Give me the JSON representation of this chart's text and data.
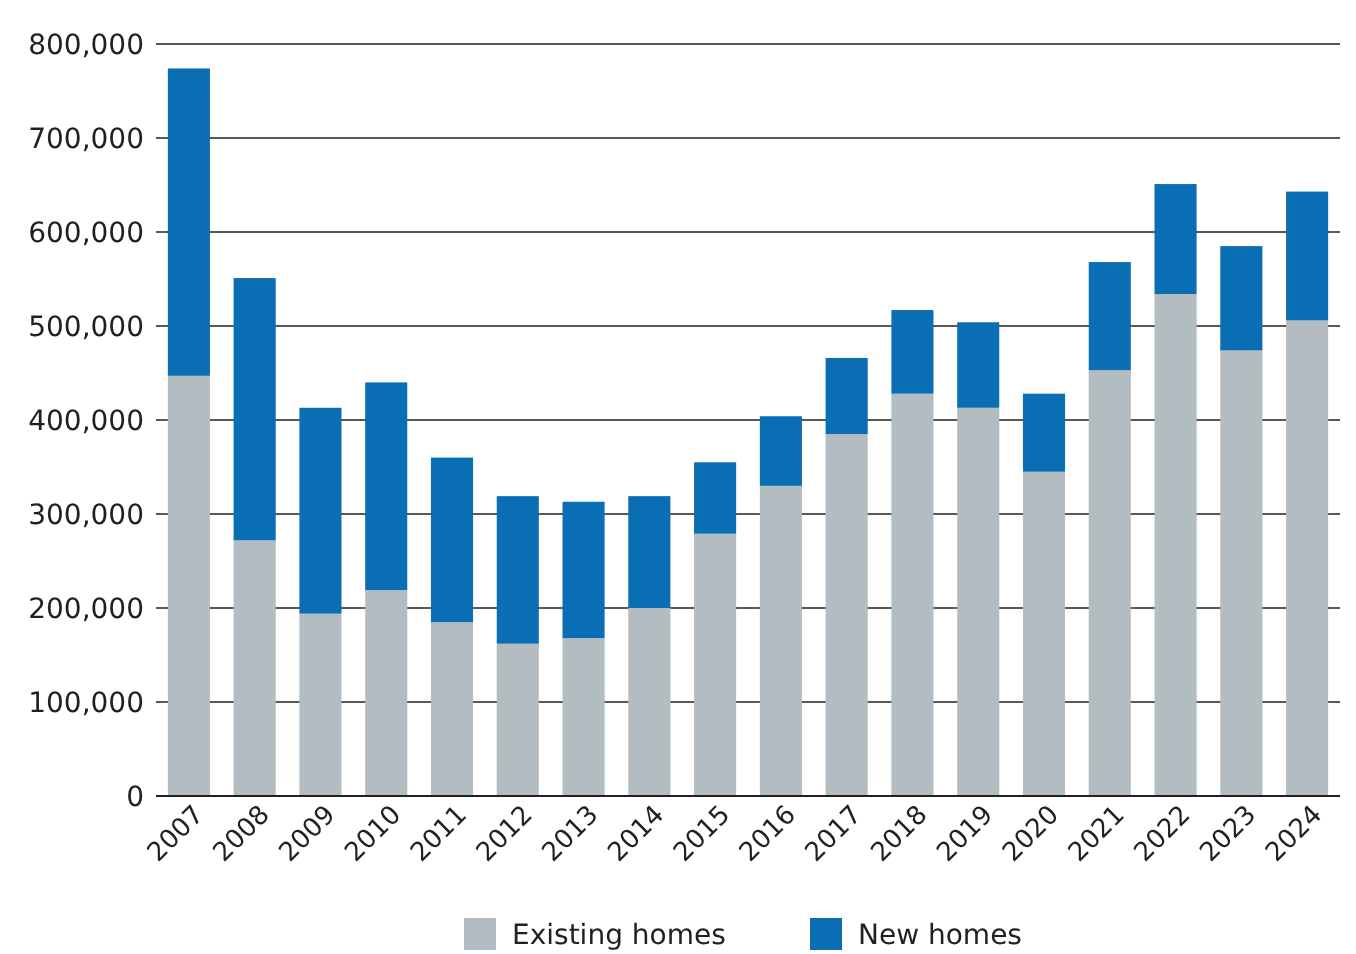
{
  "chart_data": {
    "type": "bar",
    "stacked": true,
    "categories": [
      "2007",
      "2008",
      "2009",
      "2010",
      "2011",
      "2012",
      "2013",
      "2014",
      "2015",
      "2016",
      "2017",
      "2018",
      "2019",
      "2020",
      "2021",
      "2022",
      "2023",
      "2024"
    ],
    "series": [
      {
        "name": "Existing homes",
        "color": "#b2bcc1",
        "values": [
          447000,
          272000,
          194000,
          219000,
          185000,
          162000,
          168000,
          200000,
          279000,
          330000,
          385000,
          428000,
          413000,
          345000,
          453000,
          534000,
          474000,
          506000
        ]
      },
      {
        "name": "New homes",
        "color": "#0a6eb4",
        "values": [
          327000,
          279000,
          219000,
          221000,
          175000,
          157000,
          145000,
          119000,
          76000,
          74000,
          81000,
          89000,
          91000,
          83000,
          115000,
          117000,
          111000,
          137000
        ]
      }
    ],
    "ylim": [
      0,
      800000
    ],
    "yticks": [
      {
        "value": 0,
        "label": "0"
      },
      {
        "value": 100000,
        "label": "100,000"
      },
      {
        "value": 200000,
        "label": "200,000"
      },
      {
        "value": 300000,
        "label": "300,000"
      },
      {
        "value": 400000,
        "label": "400,000"
      },
      {
        "value": 500000,
        "label": "500,000"
      },
      {
        "value": 600000,
        "label": "600,000"
      },
      {
        "value": 700000,
        "label": "700,000"
      },
      {
        "value": 800000,
        "label": "800,000"
      }
    ],
    "grid": "y",
    "legend": "bottom"
  }
}
